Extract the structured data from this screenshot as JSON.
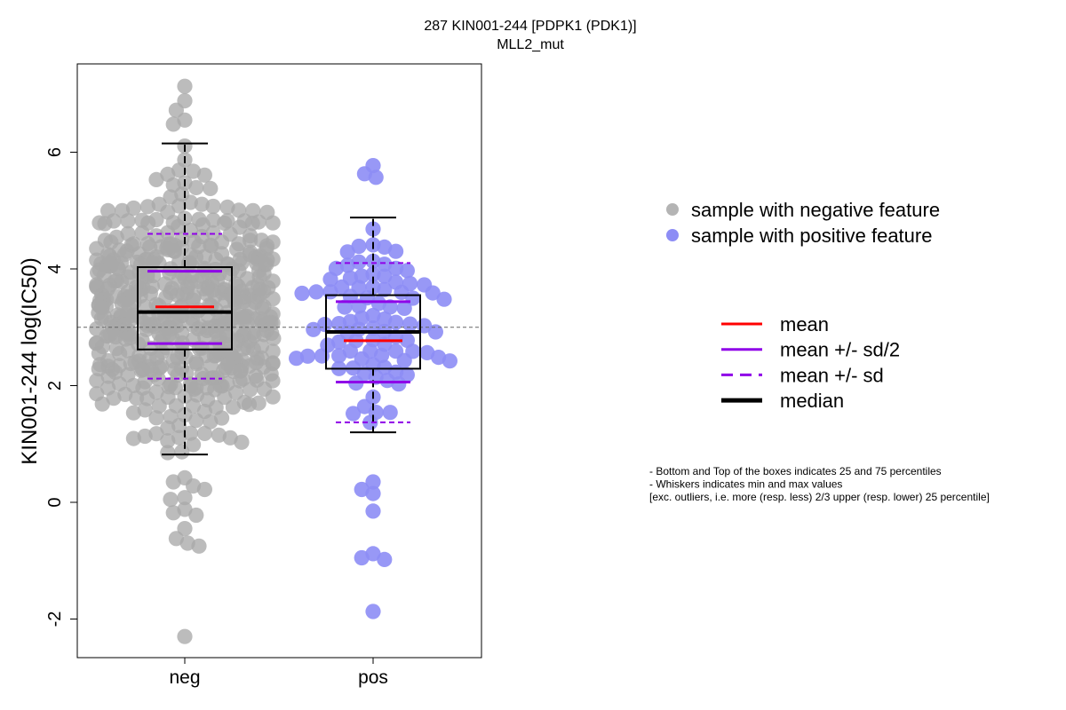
{
  "chart_data": {
    "type": "beeswarm-boxplot",
    "title": "287 KIN001-244 [PDPK1 (PDK1)]",
    "subtitle": "MLL2_mut",
    "ylabel": "KIN001-244 log(IC50)",
    "xlabel": "",
    "ylim": [
      -2.7,
      7.45
    ],
    "yticks": [
      -2,
      0,
      2,
      4,
      6
    ],
    "reference_line": 3.0,
    "categories": [
      "neg",
      "pos"
    ],
    "groups": [
      {
        "name": "neg",
        "point_color": "#a9a9a9",
        "box": {
          "q1": 2.62,
          "median": 3.26,
          "q3": 4.03,
          "whisker_low": 0.82,
          "whisker_high": 6.15
        },
        "mean": 3.35,
        "mean_minus_half_sd": 2.72,
        "mean_plus_half_sd": 3.96,
        "mean_minus_sd": 2.12,
        "mean_plus_sd": 4.6,
        "n_points": 560,
        "outliers": [
          7.13,
          6.88,
          6.72,
          6.55,
          6.48,
          0.28,
          0.35,
          0.42,
          0.22,
          0.08,
          0.05,
          -0.12,
          -0.18,
          -0.22,
          -0.45,
          -0.62,
          -0.75,
          -0.7,
          -2.3
        ]
      },
      {
        "name": "pos",
        "point_color": "#8d8df5",
        "box": {
          "q1": 2.29,
          "median": 2.92,
          "q3": 3.55,
          "whisker_low": 1.2,
          "whisker_high": 4.88
        },
        "mean": 2.77,
        "mean_minus_half_sd": 2.06,
        "mean_plus_half_sd": 3.44,
        "mean_minus_sd": 1.37,
        "mean_plus_sd": 4.1,
        "n_points": 103,
        "outliers": [
          5.77,
          5.57,
          5.63,
          0.35,
          0.15,
          0.22,
          -0.15,
          -0.88,
          -0.98,
          -0.95,
          -1.87
        ]
      }
    ],
    "legend_points": [
      {
        "label": "sample with negative feature",
        "color": "#b4b4b4"
      },
      {
        "label": "sample with positive feature",
        "color": "#8d8df5"
      }
    ],
    "legend_lines": [
      {
        "label": "mean",
        "color": "#ff0000",
        "style": "solid"
      },
      {
        "label": "mean +/- sd/2",
        "color": "#8f00e8",
        "style": "solid"
      },
      {
        "label": "mean +/- sd",
        "color": "#8f00e8",
        "style": "dashed"
      },
      {
        "label": "median",
        "color": "#000000",
        "style": "solid-thick"
      }
    ],
    "notes": [
      "- Bottom and Top of the boxes indicates 25 and 75 percentiles",
      "- Whiskers indicates min and max values",
      "[exc. outliers, i.e. more (resp. less) 2/3 upper (resp. lower) 25 percentile]"
    ]
  }
}
